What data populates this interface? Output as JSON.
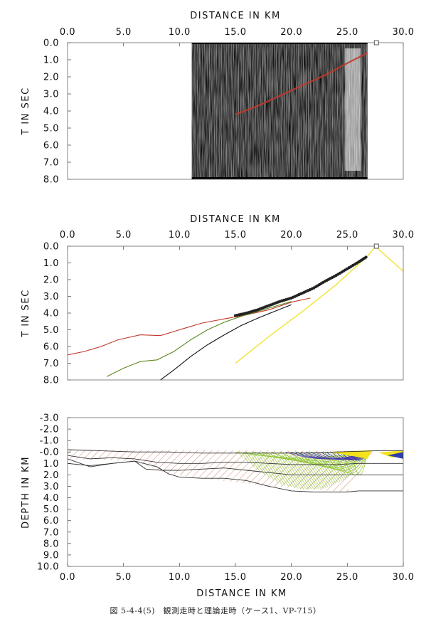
{
  "caption": "図 5-4-4(5)　観測走時と理論走時（ケース1、VP-715）",
  "colors": {
    "calc_red": "#c0392b",
    "calc_green": "#5b8a1e",
    "calc_black": "#111111",
    "calc_yellow": "#f2e64a",
    "obs": "#222222",
    "hatch_red": "#c25a3c",
    "hatch_green": "#86c225",
    "hatch_blue": "#2f3fa8",
    "hatch_yellow": "#f3e21c"
  },
  "chart_data": [
    {
      "id": "record_section",
      "type": "heatmap",
      "title": "",
      "xlabel": "DISTANCE IN KM",
      "ylabel": "T IN SEC",
      "xlim": [
        0,
        30
      ],
      "ylim": [
        8,
        0
      ],
      "xticks": [
        "0.0",
        "5.0",
        "10.0",
        "15.0",
        "20.0",
        "25.0",
        "30.0"
      ],
      "yticks": [
        "0.0",
        "1.0",
        "2.0",
        "3.0",
        "4.0",
        "5.0",
        "6.0",
        "7.0",
        "8.0"
      ],
      "record_x_range": [
        11.1,
        26.8
      ],
      "picked_line": {
        "x": [
          15.0,
          17.0,
          19.0,
          21.0,
          23.0,
          25.0,
          26.8
        ],
        "y": [
          4.2,
          3.7,
          3.1,
          2.5,
          1.9,
          1.2,
          0.6
        ]
      },
      "marker": {
        "x": 27.6,
        "y": 0.0
      }
    },
    {
      "id": "traveltime",
      "type": "line",
      "title": "",
      "xlabel": "DISTANCE IN KM",
      "ylabel": "T IN SEC",
      "xlim": [
        0,
        30
      ],
      "ylim": [
        8,
        0
      ],
      "xticks": [
        "0.0",
        "5.0",
        "10.0",
        "15.0",
        "20.0",
        "25.0",
        "30.0"
      ],
      "yticks": [
        "0.0",
        "1.0",
        "2.0",
        "3.0",
        "4.0",
        "5.0",
        "6.0",
        "7.0",
        "8.0"
      ],
      "series": [
        {
          "color": "#c0392b",
          "x": [
            0.0,
            1.5,
            3.0,
            4.5,
            6.5,
            8.3,
            10.0,
            12.0,
            14.0,
            16.0,
            18.0,
            20.0,
            21.7
          ],
          "y": [
            6.5,
            6.3,
            6.0,
            5.6,
            5.3,
            5.35,
            5.0,
            4.6,
            4.35,
            4.1,
            3.8,
            3.35,
            3.1
          ]
        },
        {
          "color": "#5b8a1e",
          "x": [
            3.5,
            5.0,
            6.5,
            8.0,
            9.5,
            11.0,
            12.5,
            14.0,
            15.5,
            17.0,
            18.5,
            20.0
          ],
          "y": [
            7.8,
            7.3,
            6.9,
            6.8,
            6.3,
            5.6,
            5.0,
            4.55,
            4.2,
            3.9,
            3.6,
            3.3
          ]
        },
        {
          "color": "#111111",
          "x": [
            8.3,
            9.5,
            11.0,
            12.5,
            14.0,
            15.5,
            17.0,
            18.5,
            20.0
          ],
          "y": [
            8.0,
            7.4,
            6.6,
            5.9,
            5.3,
            4.75,
            4.3,
            3.9,
            3.5
          ]
        },
        {
          "color": "#f2e64a",
          "x": [
            15.0,
            18.0,
            21.0,
            24.0,
            26.8
          ],
          "y": [
            7.0,
            5.4,
            3.9,
            2.3,
            0.6
          ]
        },
        {
          "color": "#f2e64a",
          "x": [
            26.8,
            27.5,
            28.5,
            30.0
          ],
          "y": [
            0.6,
            0.0,
            0.6,
            1.5
          ]
        }
      ],
      "observed": {
        "x": [
          15.0,
          16.0,
          17.0,
          18.0,
          19.0,
          20.0,
          21.0,
          22.0,
          23.0,
          24.0,
          25.0,
          26.0,
          26.8
        ],
        "y": [
          4.15,
          4.0,
          3.8,
          3.55,
          3.3,
          3.1,
          2.8,
          2.5,
          2.1,
          1.75,
          1.35,
          0.95,
          0.6
        ]
      },
      "marker": {
        "x": 27.6,
        "y": 0.0
      }
    },
    {
      "id": "ray_model",
      "type": "line",
      "title": "",
      "xlabel": "DISTANCE IN KM",
      "ylabel": "DEPTH IN KM",
      "xlim": [
        0,
        30
      ],
      "ylim": [
        10,
        -3
      ],
      "xticks": [
        "0.0",
        "5.0",
        "10.0",
        "15.0",
        "20.0",
        "25.0",
        "30.0"
      ],
      "yticks": [
        "-3.0",
        "-2.0",
        "-1.0",
        "-0.0",
        "1.0",
        "2.0",
        "3.0",
        "4.0",
        "5.0",
        "6.0",
        "7.0",
        "8.0",
        "9.0",
        "10.0"
      ],
      "boundaries": [
        {
          "x": [
            0,
            3,
            6,
            9,
            12,
            15,
            18,
            21,
            24,
            27.5,
            30
          ],
          "y": [
            -0.2,
            -0.1,
            0.0,
            0.0,
            0.1,
            0.1,
            0.1,
            0.1,
            0.0,
            -0.1,
            -0.1
          ]
        },
        {
          "x": [
            0,
            2,
            4,
            6,
            8,
            10,
            12,
            14,
            16,
            18,
            20,
            22,
            24,
            26,
            28,
            30
          ],
          "y": [
            0.3,
            0.6,
            0.5,
            0.6,
            0.9,
            1.0,
            1.0,
            0.9,
            0.9,
            1.0,
            1.1,
            1.1,
            1.1,
            1.0,
            1.0,
            1.0
          ]
        },
        {
          "x": [
            0,
            2,
            4,
            6,
            7,
            8.5,
            10,
            12,
            14,
            16,
            18,
            20,
            22,
            24,
            26,
            28,
            30
          ],
          "y": [
            0.6,
            1.3,
            1.0,
            0.8,
            1.5,
            1.6,
            1.6,
            1.5,
            1.4,
            1.6,
            1.8,
            2.0,
            2.0,
            2.0,
            2.0,
            2.0,
            2.0
          ]
        },
        {
          "x": [
            0,
            2,
            4,
            6,
            8,
            9,
            10,
            12,
            14,
            16,
            18,
            20,
            22,
            24,
            25,
            26,
            28,
            30
          ],
          "y": [
            1.0,
            1.2,
            1.0,
            0.8,
            1.3,
            1.9,
            2.2,
            2.3,
            2.3,
            2.5,
            3.0,
            3.4,
            3.5,
            3.5,
            3.5,
            3.4,
            3.4,
            3.4
          ]
        }
      ]
    }
  ]
}
